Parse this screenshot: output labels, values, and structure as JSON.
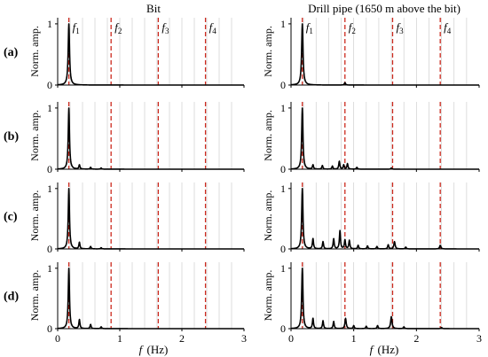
{
  "chart_data": {
    "type": "line",
    "column_titles": [
      "Bit",
      "Drill pipe (1650 m above the bit)"
    ],
    "row_labels": [
      "(a)",
      "(b)",
      "(c)",
      "(d)"
    ],
    "ylabel": "Norm. amp.",
    "xlabel": {
      "symbol": "f",
      "unit": "(Hz)"
    },
    "xlim": [
      0,
      3
    ],
    "ylim": [
      0,
      1.1
    ],
    "x_ticks": [
      "0",
      "1",
      "2",
      "3"
    ],
    "y_ticks": [
      "0",
      "1"
    ],
    "x_minor_grid_step": 0.2,
    "grid": "vertical",
    "line_color": "#000000",
    "marker_color": "#cc2a1e",
    "frequency_markers": [
      {
        "label": "f",
        "sub": "1",
        "x": 0.18
      },
      {
        "label": "f",
        "sub": "2",
        "x": 0.86
      },
      {
        "label": "f",
        "sub": "3",
        "x": 1.62
      },
      {
        "label": "f",
        "sub": "4",
        "x": 2.38
      }
    ],
    "panels": [
      {
        "row": 0,
        "col": 0,
        "peaks": [
          [
            0.18,
            1.0,
            0.013
          ]
        ]
      },
      {
        "row": 0,
        "col": 1,
        "peaks": [
          [
            0.18,
            1.0,
            0.013
          ],
          [
            0.86,
            0.04,
            0.01
          ]
        ]
      },
      {
        "row": 1,
        "col": 0,
        "peaks": [
          [
            0.18,
            1.0,
            0.012
          ],
          [
            0.35,
            0.07,
            0.01
          ],
          [
            0.53,
            0.03,
            0.01
          ],
          [
            0.7,
            0.02,
            0.01
          ]
        ]
      },
      {
        "row": 1,
        "col": 1,
        "peaks": [
          [
            0.18,
            1.0,
            0.012
          ],
          [
            0.35,
            0.07,
            0.01
          ],
          [
            0.5,
            0.06,
            0.01
          ],
          [
            0.66,
            0.05,
            0.01
          ],
          [
            0.77,
            0.13,
            0.01
          ],
          [
            0.84,
            0.07,
            0.01
          ],
          [
            0.9,
            0.09,
            0.01
          ],
          [
            1.05,
            0.03,
            0.01
          ],
          [
            1.6,
            0.02,
            0.01
          ]
        ]
      },
      {
        "row": 2,
        "col": 0,
        "peaks": [
          [
            0.18,
            1.0,
            0.012
          ],
          [
            0.35,
            0.11,
            0.01
          ],
          [
            0.53,
            0.04,
            0.01
          ],
          [
            0.7,
            0.02,
            0.01
          ]
        ]
      },
      {
        "row": 2,
        "col": 1,
        "peaks": [
          [
            0.18,
            1.0,
            0.012
          ],
          [
            0.35,
            0.17,
            0.01
          ],
          [
            0.51,
            0.12,
            0.01
          ],
          [
            0.68,
            0.17,
            0.01
          ],
          [
            0.78,
            0.3,
            0.01
          ],
          [
            0.86,
            0.15,
            0.01
          ],
          [
            0.93,
            0.14,
            0.01
          ],
          [
            1.07,
            0.06,
            0.01
          ],
          [
            1.22,
            0.05,
            0.01
          ],
          [
            1.37,
            0.04,
            0.01
          ],
          [
            1.55,
            0.07,
            0.01
          ],
          [
            1.65,
            0.12,
            0.012
          ],
          [
            1.83,
            0.03,
            0.01
          ],
          [
            2.38,
            0.06,
            0.012
          ]
        ]
      },
      {
        "row": 3,
        "col": 0,
        "peaks": [
          [
            0.18,
            1.0,
            0.012
          ],
          [
            0.35,
            0.15,
            0.01
          ],
          [
            0.53,
            0.07,
            0.01
          ],
          [
            0.7,
            0.03,
            0.01
          ]
        ]
      },
      {
        "row": 3,
        "col": 1,
        "peaks": [
          [
            0.18,
            1.0,
            0.012
          ],
          [
            0.35,
            0.17,
            0.01
          ],
          [
            0.51,
            0.13,
            0.01
          ],
          [
            0.68,
            0.12,
            0.01
          ],
          [
            0.87,
            0.17,
            0.012
          ],
          [
            1.0,
            0.05,
            0.01
          ],
          [
            1.2,
            0.04,
            0.01
          ],
          [
            1.38,
            0.05,
            0.01
          ],
          [
            1.6,
            0.2,
            0.013
          ],
          [
            1.8,
            0.03,
            0.01
          ],
          [
            2.4,
            0.02,
            0.01
          ]
        ]
      }
    ]
  }
}
